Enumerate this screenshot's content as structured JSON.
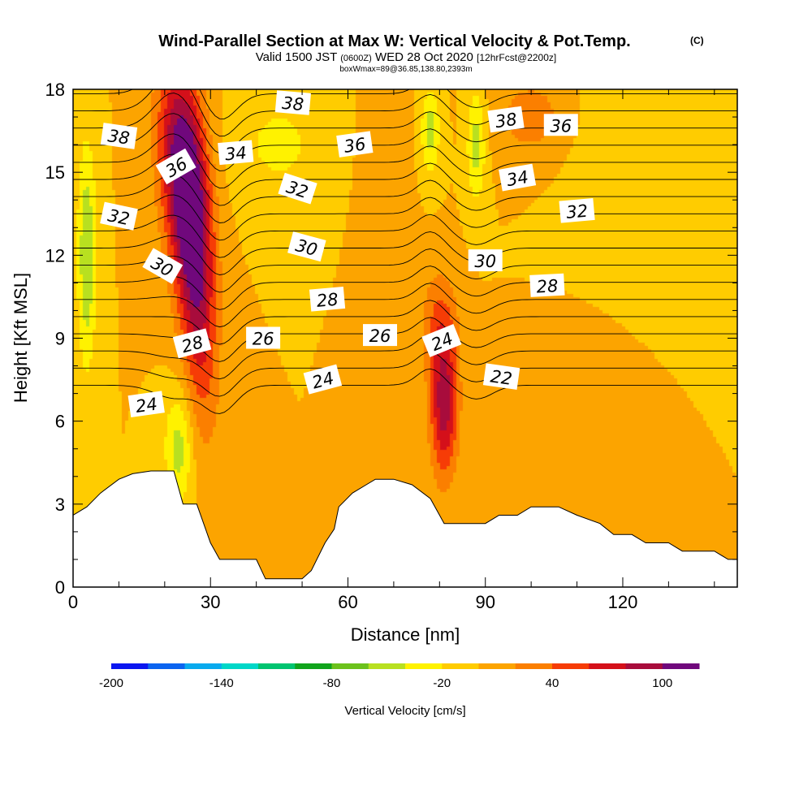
{
  "chart_data": {
    "type": "heatmap",
    "title": "Wind-Parallel Section at Max W: Vertical Velocity & Pot.Temp.",
    "copyright": "(C)",
    "subtitle_parts": [
      "Valid 1500 JST",
      "(0600Z)",
      "WED 28 Oct 2020",
      "[12hrFcst@2200z]"
    ],
    "subtitle2": "boxWmax=89@36.85,138.80,2393m",
    "xlabel": "Distance [nm]",
    "ylabel": "Height [Kft MSL]",
    "xlim": [
      0,
      145
    ],
    "ylim": [
      0,
      18
    ],
    "xticks": [
      0,
      30,
      60,
      90,
      120
    ],
    "yticks": [
      0,
      3,
      6,
      9,
      12,
      15,
      18
    ],
    "colorbar": {
      "label": "Vertical Velocity [cm/s]",
      "ticks": [
        -200,
        -140,
        -80,
        -20,
        40,
        100
      ],
      "bins": [
        -200,
        -180,
        -160,
        -140,
        -120,
        -100,
        -80,
        -60,
        -40,
        -20,
        0,
        20,
        40,
        60,
        80,
        100,
        120
      ],
      "colors": [
        "#0a16f0",
        "#0a64f0",
        "#08aaee",
        "#00d7c8",
        "#00c470",
        "#10a41c",
        "#6cc21c",
        "#b8e020",
        "#fff200",
        "#ffcc00",
        "#fca400",
        "#fb7f00",
        "#f63c06",
        "#d4101a",
        "#a80c3c",
        "#70087c"
      ]
    },
    "terrain_kft": [
      [
        0,
        2.6
      ],
      [
        3,
        2.9
      ],
      [
        6,
        3.4
      ],
      [
        10,
        3.9
      ],
      [
        13,
        4.1
      ],
      [
        17,
        4.2
      ],
      [
        22,
        4.2
      ],
      [
        24,
        3.0
      ],
      [
        27,
        3.0
      ],
      [
        30,
        1.6
      ],
      [
        32,
        1.0
      ],
      [
        40,
        1.0
      ],
      [
        42,
        0.3
      ],
      [
        50,
        0.3
      ],
      [
        52,
        0.6
      ],
      [
        55,
        1.6
      ],
      [
        57,
        2.1
      ],
      [
        58,
        2.9
      ],
      [
        61,
        3.4
      ],
      [
        64,
        3.7
      ],
      [
        66,
        3.9
      ],
      [
        70,
        3.9
      ],
      [
        74,
        3.7
      ],
      [
        78,
        3.2
      ],
      [
        81,
        2.3
      ],
      [
        90,
        2.3
      ],
      [
        93,
        2.6
      ],
      [
        97,
        2.6
      ],
      [
        100,
        2.9
      ],
      [
        106,
        2.9
      ],
      [
        110,
        2.6
      ],
      [
        115,
        2.3
      ],
      [
        118,
        1.9
      ],
      [
        122,
        1.9
      ],
      [
        125,
        1.6
      ],
      [
        130,
        1.6
      ],
      [
        133,
        1.3
      ],
      [
        140,
        1.3
      ],
      [
        143,
        1.0
      ],
      [
        145,
        1.0
      ]
    ],
    "w_features": [
      {
        "x": 24,
        "y": 15,
        "sx": 5,
        "sy": 4,
        "tilt": -0.4,
        "w": 110
      },
      {
        "x": 27,
        "y": 11,
        "sx": 4,
        "sy": 5,
        "tilt": -0.3,
        "w": 80
      },
      {
        "x": 81,
        "y": 6.5,
        "sx": 3,
        "sy": 2.5,
        "tilt": 0.0,
        "w": 90
      },
      {
        "x": 80,
        "y": 9.5,
        "sx": 4,
        "sy": 2,
        "tilt": 0.0,
        "w": 40
      },
      {
        "x": 100,
        "y": 17,
        "sx": 8,
        "sy": 1.5,
        "tilt": 0.0,
        "w": 30
      },
      {
        "x": 110,
        "y": 6,
        "sx": 8,
        "sy": 2.5,
        "tilt": 0.0,
        "w": 20
      },
      {
        "x": 68,
        "y": 15,
        "sx": 5,
        "sy": 3,
        "tilt": 0.0,
        "w": 10
      },
      {
        "x": 3,
        "y": 12,
        "sx": 2,
        "sy": 4,
        "tilt": 0.0,
        "w": -60
      },
      {
        "x": 23,
        "y": 5,
        "sx": 3,
        "sy": 2,
        "tilt": 0.0,
        "w": -50
      },
      {
        "x": 78,
        "y": 16.5,
        "sx": 2,
        "sy": 1.5,
        "tilt": 0.0,
        "w": -50
      },
      {
        "x": 88,
        "y": 16,
        "sx": 2,
        "sy": 2,
        "tilt": 0.0,
        "w": -50
      },
      {
        "x": 45,
        "y": 16,
        "sx": 10,
        "sy": 2,
        "tilt": 0.0,
        "w": -25
      },
      {
        "x": 120,
        "y": 15,
        "sx": 10,
        "sy": 3,
        "tilt": 0.0,
        "w": -20
      }
    ],
    "theta_contours": [
      22,
      23,
      24,
      25,
      26,
      27,
      28,
      29,
      30,
      31,
      32,
      33,
      34,
      35,
      36,
      37,
      38,
      39
    ],
    "contour_labels": [
      {
        "text": "38",
        "x": 10,
        "y": 16.3,
        "angle": 8
      },
      {
        "text": "36",
        "x": 22.5,
        "y": 15.2,
        "angle": -30
      },
      {
        "text": "32",
        "x": 10,
        "y": 13.4,
        "angle": 12
      },
      {
        "text": "30",
        "x": 19.5,
        "y": 11.6,
        "angle": 30
      },
      {
        "text": "28",
        "x": 26,
        "y": 8.8,
        "angle": -15
      },
      {
        "text": "24",
        "x": 16,
        "y": 6.6,
        "angle": -8
      },
      {
        "text": "38",
        "x": 48,
        "y": 17.5,
        "angle": 5
      },
      {
        "text": "34",
        "x": 35.5,
        "y": 15.7,
        "angle": -5
      },
      {
        "text": "36",
        "x": 61.5,
        "y": 16.0,
        "angle": -8
      },
      {
        "text": "32",
        "x": 49,
        "y": 14.4,
        "angle": 18
      },
      {
        "text": "30",
        "x": 51,
        "y": 12.3,
        "angle": 15
      },
      {
        "text": "28",
        "x": 55.5,
        "y": 10.4,
        "angle": -5
      },
      {
        "text": "26",
        "x": 41.5,
        "y": 9.0,
        "angle": 0
      },
      {
        "text": "26",
        "x": 67,
        "y": 9.1,
        "angle": 0
      },
      {
        "text": "24",
        "x": 54.5,
        "y": 7.5,
        "angle": -15
      },
      {
        "text": "24",
        "x": 80.5,
        "y": 8.9,
        "angle": -22
      },
      {
        "text": "38",
        "x": 94.5,
        "y": 16.9,
        "angle": -8
      },
      {
        "text": "36",
        "x": 106.5,
        "y": 16.7,
        "angle": 0
      },
      {
        "text": "34",
        "x": 97,
        "y": 14.8,
        "angle": -10
      },
      {
        "text": "32",
        "x": 110,
        "y": 13.6,
        "angle": -5
      },
      {
        "text": "30",
        "x": 90,
        "y": 11.8,
        "angle": 0
      },
      {
        "text": "28",
        "x": 103.5,
        "y": 10.9,
        "angle": -3
      },
      {
        "text": "22",
        "x": 93.5,
        "y": 7.6,
        "angle": 8
      }
    ]
  }
}
